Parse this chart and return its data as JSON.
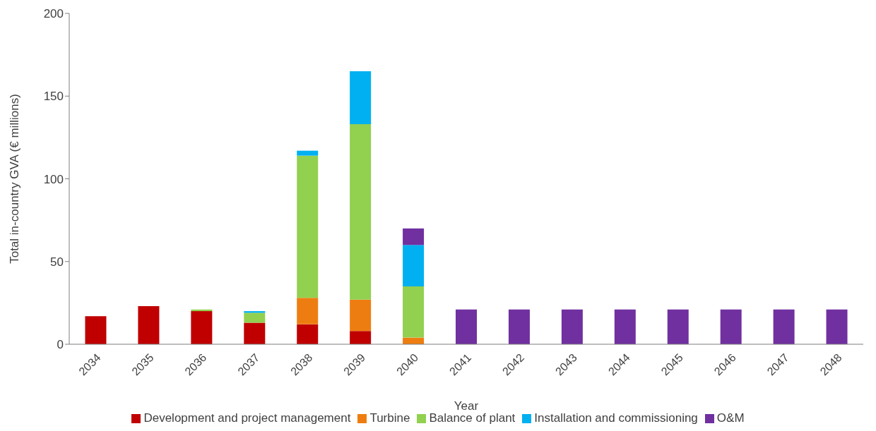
{
  "chart_data": {
    "type": "bar",
    "stacked": true,
    "xlabel": "Year",
    "ylabel": "Total in-country GVA (€ millions)",
    "categories": [
      "2034",
      "2035",
      "2036",
      "2037",
      "2038",
      "2039",
      "2040",
      "2041",
      "2042",
      "2043",
      "2044",
      "2045",
      "2046",
      "2047",
      "2048"
    ],
    "series": [
      {
        "name": "Development and project management",
        "color": "#c00000",
        "values": [
          17,
          23,
          20,
          13,
          12,
          8,
          0,
          0,
          0,
          0,
          0,
          0,
          0,
          0,
          0
        ]
      },
      {
        "name": "Turbine",
        "color": "#ee7d11",
        "values": [
          0,
          0,
          0,
          0,
          16,
          19,
          4,
          0,
          0,
          0,
          0,
          0,
          0,
          0,
          0
        ]
      },
      {
        "name": "Balance of plant",
        "color": "#92d050",
        "values": [
          0,
          0,
          1,
          6,
          86,
          106,
          31,
          0,
          0,
          0,
          0,
          0,
          0,
          0,
          0
        ]
      },
      {
        "name": "Installation and commissioning",
        "color": "#00b0f0",
        "values": [
          0,
          0,
          0,
          1,
          3,
          32,
          25,
          0,
          0,
          0,
          0,
          0,
          0,
          0,
          0
        ]
      },
      {
        "name": "O&M",
        "color": "#7030a0",
        "values": [
          0,
          0,
          0,
          0,
          0,
          0,
          10,
          21,
          21,
          21,
          21,
          21,
          21,
          21,
          21
        ]
      }
    ],
    "ylim": [
      0,
      200
    ],
    "yticks": [
      0,
      50,
      100,
      150,
      200
    ],
    "grid": false,
    "legend": "bottom"
  }
}
